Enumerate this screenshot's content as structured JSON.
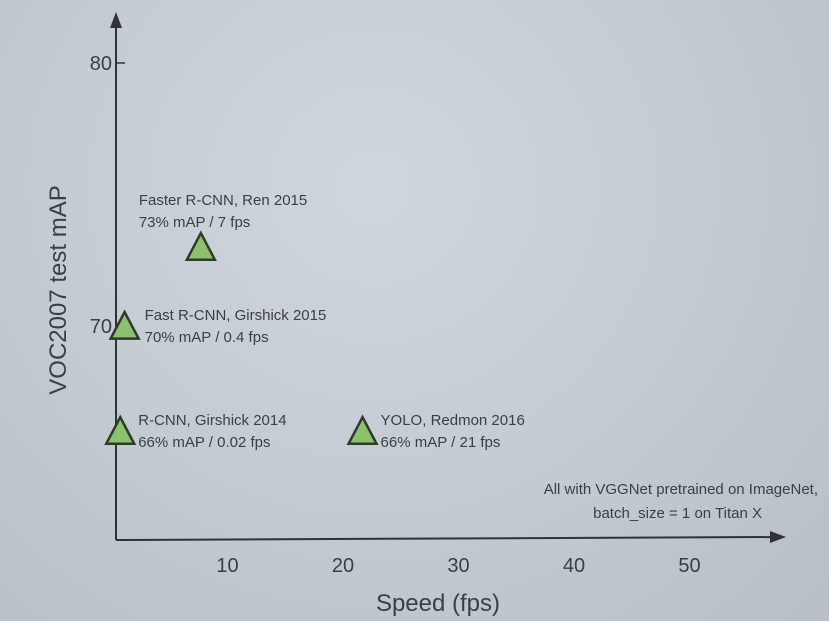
{
  "chart_data": {
    "type": "scatter",
    "xlabel": "Speed (fps)",
    "ylabel": "VOC2007 test mAP",
    "x_ticks": [
      "10",
      "20",
      "30",
      "40",
      "50"
    ],
    "y_ticks": [
      "70",
      "80"
    ],
    "xlim": [
      0,
      58
    ],
    "ylim": [
      59,
      84
    ],
    "grid": false,
    "marker": "triangle",
    "marker_color": "#8cc26d",
    "points": [
      {
        "x": 0.02,
        "y": 66,
        "label_line1": "R-CNN, Girshick 2014",
        "label_line2": "66% mAP / 0.02 fps"
      },
      {
        "x": 0.4,
        "y": 70,
        "label_line1": "Fast R-CNN, Girshick 2015",
        "label_line2": "70% mAP / 0.4 fps"
      },
      {
        "x": 7,
        "y": 73,
        "label_line1": "Faster R-CNN, Ren 2015",
        "label_line2": "73% mAP / 7 fps"
      },
      {
        "x": 21,
        "y": 66,
        "label_line1": "YOLO, Redmon 2016",
        "label_line2": "66% mAP / 21 fps"
      }
    ],
    "note_line1": "All with VGGNet pretrained on ImageNet,",
    "note_line2": "batch_size = 1 on Titan X"
  }
}
